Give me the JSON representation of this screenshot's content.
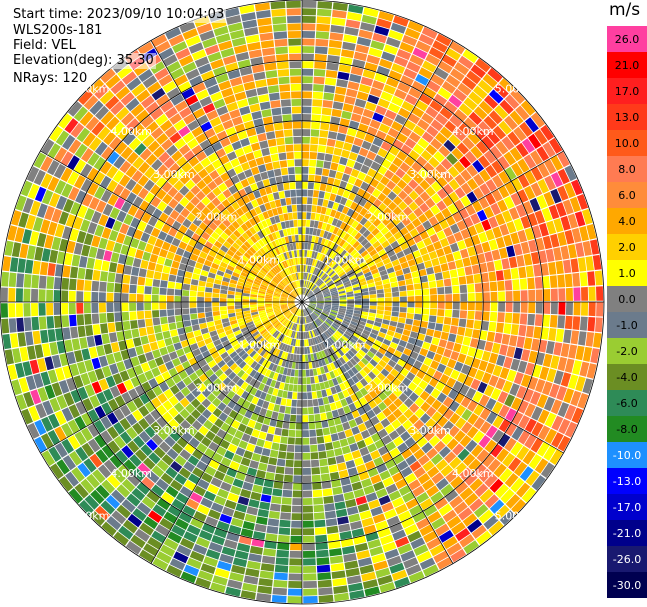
{
  "info": {
    "start_time": "Start time: 2023/09/10 10:04:03",
    "instrument": "WLS200s-181",
    "field": "Field: VEL",
    "elevation": "Elevation(deg): 35.30",
    "nrays": "NRays: 120"
  },
  "colorbar": {
    "unit": "m/s",
    "ticks": [
      "26.0",
      "21.0",
      "17.0",
      "13.0",
      "10.0",
      "8.0",
      "6.0",
      "4.0",
      "2.0",
      "1.0",
      "0.0",
      "-1.0",
      "-2.0",
      "-4.0",
      "-6.0",
      "-8.0",
      "-10.0",
      "-13.0",
      "-17.0",
      "-21.0",
      "-26.0",
      "-30.0"
    ],
    "colors": [
      "#ff3fa0",
      "#ff0000",
      "#ff1f1f",
      "#ff3a1a",
      "#ff5a1a",
      "#ff7b52",
      "#ff8c3a",
      "#ffa800",
      "#ffd000",
      "#ffff00",
      "#808080",
      "#6b7b8c",
      "#9acd32",
      "#6b8e23",
      "#2e8b57",
      "#228b22",
      "#1e90ff",
      "#0000ff",
      "#0000cd",
      "#00008b",
      "#191970",
      "#000050"
    ]
  },
  "chart_data": {
    "type": "heatmap",
    "projection": "polar PPI scan",
    "field": "VEL",
    "units": "m/s",
    "rays": 120,
    "range_ring_labels": [
      "1.00km",
      "2.00km",
      "3.00km",
      "4.00km",
      "5.00km"
    ],
    "range_max_km": 5.0,
    "color_scale_min": -30.0,
    "color_scale_max": 26.0,
    "sectors_dominant_velocity": [
      {
        "azimuth_deg": 0,
        "near_km_value": 0.0,
        "far_km_value": 0.0
      },
      {
        "azimuth_deg": 45,
        "near_km_value": -1.0,
        "far_km_value": 8.0
      },
      {
        "azimuth_deg": 90,
        "near_km_value": -2.0,
        "far_km_value": 6.0
      },
      {
        "azimuth_deg": 135,
        "near_km_value": -2.0,
        "far_km_value": 4.0
      },
      {
        "azimuth_deg": 180,
        "near_km_value": 0.0,
        "far_km_value": -6.0
      },
      {
        "azimuth_deg": 225,
        "near_km_value": 2.0,
        "far_km_value": -6.0
      },
      {
        "azimuth_deg": 270,
        "near_km_value": 2.0,
        "far_km_value": -4.0
      },
      {
        "azimuth_deg": 315,
        "near_km_value": 2.0,
        "far_km_value": 4.0
      }
    ]
  }
}
